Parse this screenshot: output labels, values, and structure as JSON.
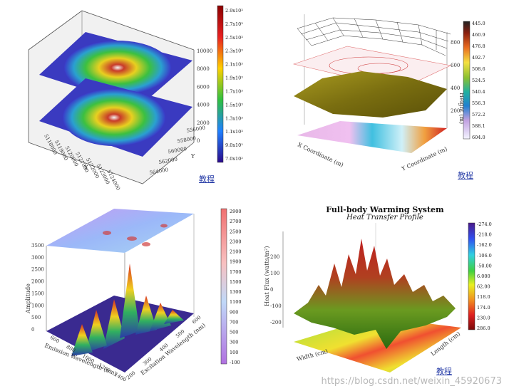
{
  "links": {
    "label": "教程"
  },
  "watermark": "https://blog.csdn.net/weixin_45920673",
  "chart_data": [
    {
      "type": "surface3d",
      "title": "",
      "description_of_axes": "two stacked elevation surfaces",
      "xlabel": "X",
      "ylabel": "Y",
      "xticks": [
        "5118000",
        "5119000",
        "5120000",
        "5121000",
        "5122000",
        "5123000",
        "5124000"
      ],
      "yticks": [
        "556000",
        "558000",
        "560000",
        "562000",
        "564000"
      ],
      "zticks": [
        "0",
        "2000",
        "4000",
        "6000",
        "8000",
        "10000"
      ],
      "colorbar": [
        "2.9x10³",
        "2.7x10³",
        "2.5x10³",
        "2.3x10³",
        "2.1x10³",
        "1.9x10³",
        "1.7x10³",
        "1.5x10³",
        "1.3x10³",
        "1.1x10³",
        "9.0x10²",
        "7.0x10²"
      ]
    },
    {
      "type": "surface3d",
      "title": "",
      "xlabel": "X Coordinate (m)",
      "ylabel": "Y Coordinate (m)",
      "zlabel": "Height (m)",
      "zticks": [
        "200",
        "400",
        "600",
        "800"
      ],
      "colorbar": [
        "445.0",
        "460.9",
        "476.8",
        "492.7",
        "508.6",
        "524.5",
        "540.4",
        "556.3",
        "572.2",
        "588.1",
        "604.0"
      ]
    },
    {
      "type": "surface3d",
      "title": "",
      "xlabel": "Emission Wavelength (nm)",
      "ylabel": "Excitation Wavelength (nm)",
      "zlabel": "Amplitude",
      "zticks": [
        "0",
        "500",
        "1000",
        "1500",
        "2000",
        "2500",
        "3000",
        "3500"
      ],
      "xticks": [
        "600",
        "800",
        "1000",
        "1200",
        "1400"
      ],
      "yticks": [
        "200",
        "300",
        "400",
        "500",
        "600"
      ],
      "colorbar": [
        "2900",
        "2700",
        "2500",
        "2300",
        "2100",
        "1900",
        "1700",
        "1500",
        "1300",
        "1100",
        "900",
        "700",
        "500",
        "300",
        "100",
        "-100"
      ]
    },
    {
      "type": "surface3d",
      "title": "Full-body Warming System",
      "subtitle": "Heat Transfer Profile",
      "xlabel": "Width (cm)",
      "ylabel": "Length (cm)",
      "zlabel": "Heat Flux (watts/m²)",
      "zticks": [
        "-200",
        "-100",
        "0",
        "100",
        "200"
      ],
      "colorbar": [
        "-274.0",
        "-218.0",
        "-162.0",
        "-106.0",
        "-50.00",
        "6.000",
        "62.00",
        "118.0",
        "174.0",
        "230.0",
        "286.0"
      ]
    }
  ]
}
